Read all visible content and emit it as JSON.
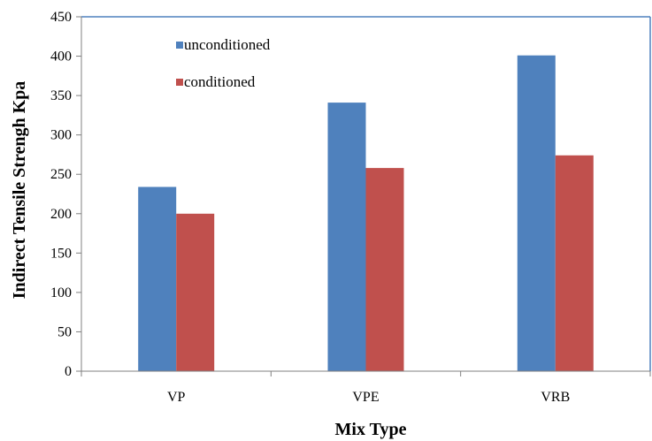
{
  "chart_data": {
    "type": "bar",
    "title": "",
    "xlabel": "Mix Type",
    "ylabel": "Indirect Tensile Strengh Kpa",
    "categories": [
      "VP",
      "VPE",
      "VRB"
    ],
    "series": [
      {
        "name": "unconditioned",
        "values": [
          234,
          341,
          401
        ],
        "color": "#4F81BD"
      },
      {
        "name": "conditioned",
        "values": [
          200,
          258,
          274
        ],
        "color": "#C0504D"
      }
    ],
    "ylim": [
      0,
      450
    ],
    "yticks": [
      0,
      50,
      100,
      150,
      200,
      250,
      300,
      350,
      400,
      450
    ],
    "grid": false,
    "legend_position": "top-left",
    "plot_border_color": "#4F81BD",
    "axis_color": "#808080"
  }
}
